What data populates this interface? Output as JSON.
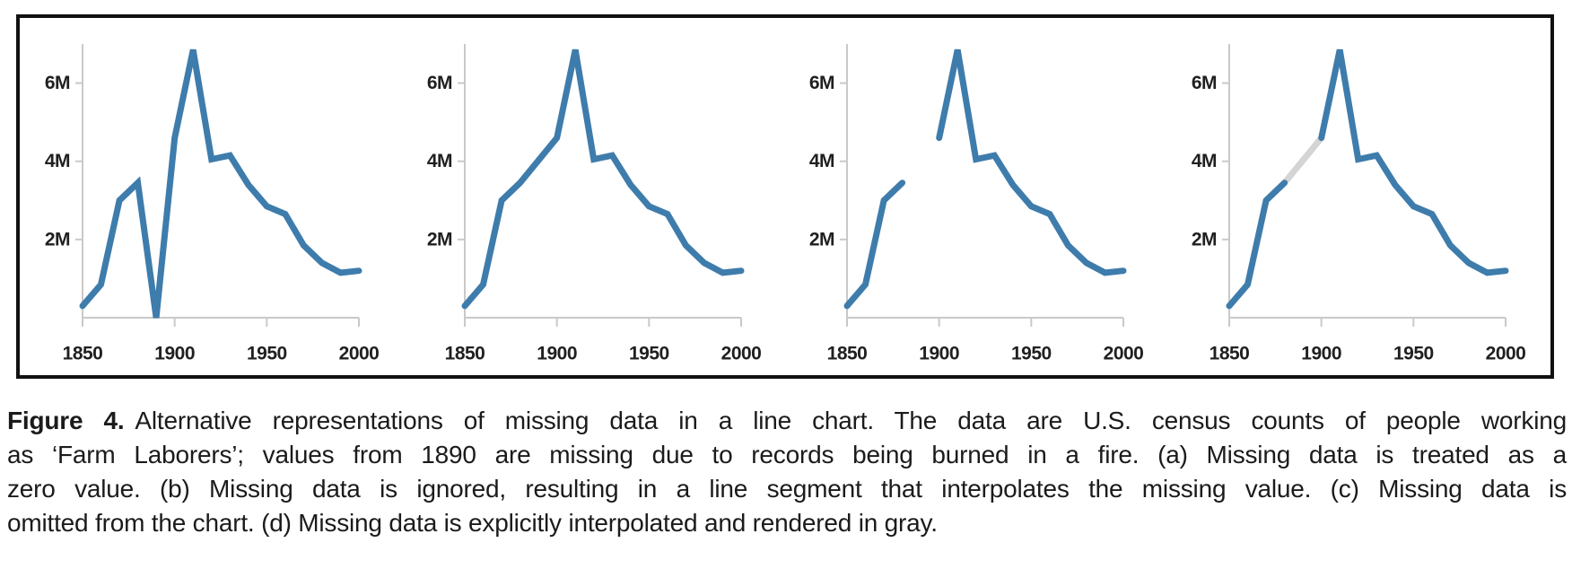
{
  "figure": {
    "caption_label": "Figure 4.",
    "caption_lines": [
      "Alternative representations of missing data in a line chart. The data are U.S. census counts of people working",
      "as ‘Farm Laborers’; values from 1890 are missing due to records being burned in a fire. (a) Missing data is treated as a",
      "zero value. (b) Missing data is ignored, resulting in a line segment that interpolates the missing value. (c) Missing data is",
      "omitted from the chart. (d) Missing data is explicitly interpolated and rendered in gray."
    ]
  },
  "colors": {
    "line": "#3e7cac",
    "missing_segment": "#d4d4d4",
    "axis": "#c9c9c9",
    "tick_label": "#202020",
    "border": "#111111"
  },
  "chart_data": [
    {
      "type": "line",
      "panel": "a",
      "missing_treatment": "zero",
      "title": "",
      "xlabel": "",
      "ylabel": "",
      "x": [
        1850,
        1860,
        1870,
        1880,
        1890,
        1900,
        1910,
        1920,
        1930,
        1940,
        1950,
        1960,
        1970,
        1980,
        1990,
        2000
      ],
      "values": [
        0.3,
        0.85,
        3.0,
        3.45,
        0,
        4.6,
        6.85,
        4.05,
        4.15,
        3.4,
        2.85,
        2.65,
        1.85,
        1.4,
        1.15,
        1.2
      ],
      "missing_year": 1890,
      "unit": "millions of people",
      "xlim": [
        1850,
        2000
      ],
      "ylim": [
        0,
        7
      ],
      "grid": false,
      "x_ticks": [
        {
          "value": 1850,
          "label": "1850"
        },
        {
          "value": 1900,
          "label": "1900"
        },
        {
          "value": 1950,
          "label": "1950"
        },
        {
          "value": 2000,
          "label": "2000"
        }
      ],
      "y_ticks": [
        {
          "value": 2,
          "label": "2M"
        },
        {
          "value": 4,
          "label": "4M"
        },
        {
          "value": 6,
          "label": "6M"
        }
      ]
    },
    {
      "type": "line",
      "panel": "b",
      "missing_treatment": "interpolated-by-line-segment",
      "title": "",
      "xlabel": "",
      "ylabel": "",
      "x": [
        1850,
        1860,
        1870,
        1880,
        1890,
        1900,
        1910,
        1920,
        1930,
        1940,
        1950,
        1960,
        1970,
        1980,
        1990,
        2000
      ],
      "values": [
        0.3,
        0.85,
        3.0,
        3.45,
        null,
        4.6,
        6.85,
        4.05,
        4.15,
        3.4,
        2.85,
        2.65,
        1.85,
        1.4,
        1.15,
        1.2
      ],
      "missing_year": 1890,
      "unit": "millions of people",
      "xlim": [
        1850,
        2000
      ],
      "ylim": [
        0,
        7
      ],
      "grid": false,
      "x_ticks": [
        {
          "value": 1850,
          "label": "1850"
        },
        {
          "value": 1900,
          "label": "1900"
        },
        {
          "value": 1950,
          "label": "1950"
        },
        {
          "value": 2000,
          "label": "2000"
        }
      ],
      "y_ticks": [
        {
          "value": 2,
          "label": "2M"
        },
        {
          "value": 4,
          "label": "4M"
        },
        {
          "value": 6,
          "label": "6M"
        }
      ]
    },
    {
      "type": "line",
      "panel": "c",
      "missing_treatment": "omitted",
      "title": "",
      "xlabel": "",
      "ylabel": "",
      "x": [
        1850,
        1860,
        1870,
        1880,
        1890,
        1900,
        1910,
        1920,
        1930,
        1940,
        1950,
        1960,
        1970,
        1980,
        1990,
        2000
      ],
      "values": [
        0.3,
        0.85,
        3.0,
        3.45,
        null,
        4.6,
        6.85,
        4.05,
        4.15,
        3.4,
        2.85,
        2.65,
        1.85,
        1.4,
        1.15,
        1.2
      ],
      "missing_year": 1890,
      "unit": "millions of people",
      "xlim": [
        1850,
        2000
      ],
      "ylim": [
        0,
        7
      ],
      "grid": false,
      "x_ticks": [
        {
          "value": 1850,
          "label": "1850"
        },
        {
          "value": 1900,
          "label": "1900"
        },
        {
          "value": 1950,
          "label": "1950"
        },
        {
          "value": 2000,
          "label": "2000"
        }
      ],
      "y_ticks": [
        {
          "value": 2,
          "label": "2M"
        },
        {
          "value": 4,
          "label": "4M"
        },
        {
          "value": 6,
          "label": "6M"
        }
      ]
    },
    {
      "type": "line",
      "panel": "d",
      "missing_treatment": "explicit-gray-interpolation",
      "title": "",
      "xlabel": "",
      "ylabel": "",
      "x": [
        1850,
        1860,
        1870,
        1880,
        1890,
        1900,
        1910,
        1920,
        1930,
        1940,
        1950,
        1960,
        1970,
        1980,
        1990,
        2000
      ],
      "values": [
        0.3,
        0.85,
        3.0,
        3.45,
        null,
        4.6,
        6.85,
        4.05,
        4.15,
        3.4,
        2.85,
        2.65,
        1.85,
        1.4,
        1.15,
        1.2
      ],
      "missing_year": 1890,
      "unit": "millions of people",
      "xlim": [
        1850,
        2000
      ],
      "ylim": [
        0,
        7
      ],
      "grid": false,
      "x_ticks": [
        {
          "value": 1850,
          "label": "1850"
        },
        {
          "value": 1900,
          "label": "1900"
        },
        {
          "value": 1950,
          "label": "1950"
        },
        {
          "value": 2000,
          "label": "2000"
        }
      ],
      "y_ticks": [
        {
          "value": 2,
          "label": "2M"
        },
        {
          "value": 4,
          "label": "4M"
        },
        {
          "value": 6,
          "label": "6M"
        }
      ]
    }
  ]
}
